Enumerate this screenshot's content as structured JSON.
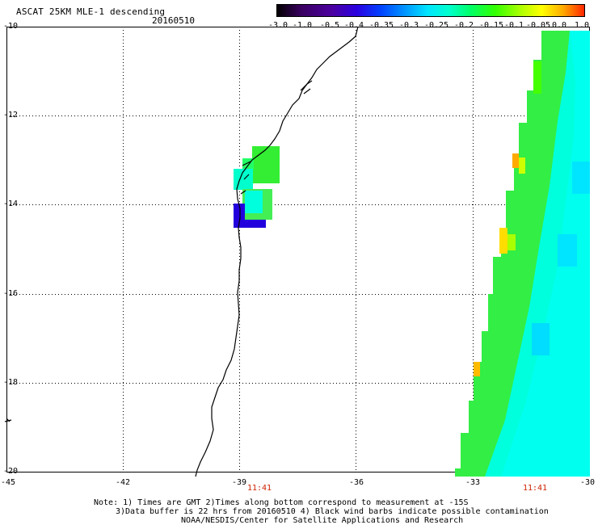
{
  "header": {
    "title": "ASCAT 25KM MLE-1 descending",
    "date": "20160510"
  },
  "colorbar": {
    "labels": [
      "-3.0",
      "-1.0",
      "-0.5",
      "-0.4",
      "-0.35",
      "-0.3",
      "-0.25",
      "-0.2",
      "-0.15",
      "-0.1",
      "-0.05",
      "0.0",
      "1.0"
    ],
    "colors": [
      "#000000",
      "#4b0082",
      "#2200dd",
      "#0044ff",
      "#0099ff",
      "#00e5ff",
      "#00ffcc",
      "#00ff66",
      "#33ff00",
      "#aaff00",
      "#ffff00",
      "#ffaa00",
      "#ff2200"
    ]
  },
  "map": {
    "lon_range": [
      -45,
      -30
    ],
    "lat_range": [
      -20,
      -10
    ],
    "y_ticks": [
      "-10",
      "-12",
      "-14",
      "-16",
      "-18",
      "-20"
    ],
    "x_ticks": [
      "-45",
      "-42",
      "-39",
      "-36",
      "-33",
      "-30"
    ],
    "time_labels": [
      "11:41",
      "11:41"
    ]
  },
  "notes": {
    "line1": "Note: 1) Times are GMT 2)Times along bottom correspond to measurement at -15S",
    "line2": "3)Data buffer is 22 hrs from 20160510 4) Black wind barbs indicate possible contamination",
    "line3": "NOAA/NESDIS/Center for Satellite Applications and Research"
  }
}
